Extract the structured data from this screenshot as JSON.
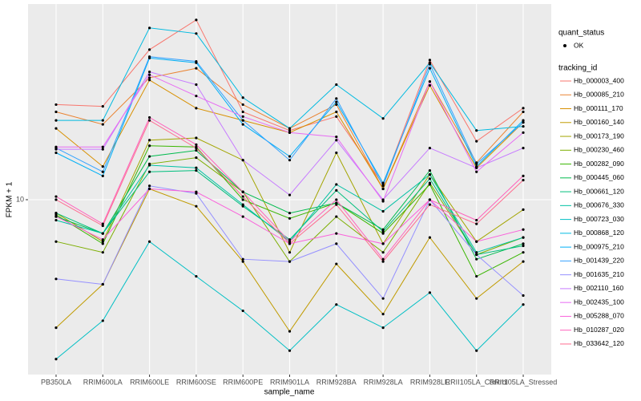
{
  "chart_data": {
    "type": "line",
    "x_label": "sample_name",
    "y_label": "FPKM + 1",
    "categories": [
      "PB350LA",
      "RRIM600LA",
      "RRIM600LE",
      "RRIM600SE",
      "RRIM600PE",
      "RRIM901LA",
      "RRIM928BA",
      "RRIM928LA",
      "RRIM928LE",
      "RRII105LA_Control",
      "RRII105LA_Stressed"
    ],
    "ylim": [
      3.36,
      33.9
    ],
    "yticks": [
      10
    ],
    "log_scale": true,
    "grid": true,
    "shape_legend": {
      "title": "quant_status",
      "labels": [
        "OK"
      ]
    },
    "legend_title": "tracking_id",
    "series": [
      {
        "name": "Hb_000003_400",
        "color": "#F8766D",
        "values": [
          18.1,
          17.9,
          25.5,
          30.7,
          17.3,
          15.4,
          16.8,
          11.0,
          23.9,
          14.4,
          17.7
        ]
      },
      {
        "name": "Hb_000085_210",
        "color": "#EA8331",
        "values": [
          17.3,
          16.0,
          21.4,
          22.7,
          18.1,
          15.6,
          18.1,
          10.7,
          20.9,
          12.6,
          17.3
        ]
      },
      {
        "name": "Hb_000111_170",
        "color": "#D89000",
        "values": [
          15.6,
          12.3,
          21.1,
          17.7,
          16.4,
          15.2,
          17.3,
          10.7,
          20.4,
          12.2,
          16.2
        ]
      },
      {
        "name": "Hb_000160_140",
        "color": "#C09B00",
        "values": [
          4.5,
          5.9,
          10.7,
          9.6,
          6.8,
          4.4,
          6.7,
          4.9,
          7.9,
          5.4,
          6.8
        ]
      },
      {
        "name": "Hb_000173_190",
        "color": "#A3A500",
        "values": [
          9.2,
          7.7,
          14.5,
          14.7,
          12.8,
          7.2,
          13.4,
          7.6,
          11.7,
          7.7,
          9.4
        ]
      },
      {
        "name": "Hb_000230_460",
        "color": "#7CAE00",
        "values": [
          7.7,
          7.2,
          12.5,
          13.0,
          10.5,
          6.8,
          9.0,
          7.2,
          11.1,
          7.1,
          7.9
        ]
      },
      {
        "name": "Hb_000282_090",
        "color": "#39B600",
        "values": [
          9.1,
          7.6,
          14.0,
          13.9,
          10.0,
          8.9,
          9.8,
          8.1,
          11.0,
          6.2,
          7.2
        ]
      },
      {
        "name": "Hb_000445_060",
        "color": "#00BB4E",
        "values": [
          9.0,
          8.1,
          13.1,
          13.6,
          10.5,
          9.2,
          9.8,
          8.3,
          12.0,
          6.9,
          7.6
        ]
      },
      {
        "name": "Hb_000661_120",
        "color": "#00BF7D",
        "values": [
          9.2,
          8.1,
          11.9,
          12.0,
          9.6,
          7.8,
          10.6,
          8.2,
          11.4,
          7.1,
          7.5
        ]
      },
      {
        "name": "Hb_000676_330",
        "color": "#00C1A3",
        "values": [
          8.8,
          8.1,
          12.4,
          12.2,
          9.7,
          7.7,
          11.0,
          9.3,
          11.7,
          7.2,
          7.9
        ]
      },
      {
        "name": "Hb_000723_030",
        "color": "#00BFC4",
        "values": [
          3.7,
          4.7,
          7.7,
          6.2,
          5.0,
          3.9,
          5.2,
          4.5,
          5.6,
          3.9,
          5.2
        ]
      },
      {
        "name": "Hb_000868_120",
        "color": "#00BAE0",
        "values": [
          16.4,
          16.4,
          29.2,
          28.2,
          18.9,
          15.6,
          20.5,
          16.6,
          23.5,
          15.4,
          15.8
        ]
      },
      {
        "name": "Hb_000975_210",
        "color": "#00B0F6",
        "values": [
          13.4,
          11.6,
          24.2,
          23.5,
          16.0,
          13.1,
          18.4,
          11.1,
          22.7,
          12.3,
          16.4
        ]
      },
      {
        "name": "Hb_001439_220",
        "color": "#35A2FF",
        "values": [
          13.8,
          11.9,
          24.4,
          23.7,
          16.4,
          12.8,
          18.8,
          10.9,
          23.3,
          12.5,
          16.2
        ]
      },
      {
        "name": "Hb_001635_210",
        "color": "#9590FF",
        "values": [
          6.1,
          5.9,
          10.9,
          10.4,
          6.9,
          6.8,
          7.6,
          5.4,
          10.0,
          7.1,
          5.5
        ]
      },
      {
        "name": "Hb_002110_160",
        "color": "#C77CFF",
        "values": [
          13.7,
          13.7,
          22.2,
          20.5,
          12.8,
          10.3,
          14.5,
          10.0,
          13.8,
          12.2,
          13.8
        ]
      },
      {
        "name": "Hb_002435_100",
        "color": "#E76BF3",
        "values": [
          13.9,
          13.9,
          21.8,
          19.1,
          16.8,
          15.2,
          14.8,
          9.9,
          20.9,
          11.9,
          15.2
        ]
      },
      {
        "name": "Hb_005288_070",
        "color": "#FA62DB",
        "values": [
          9.0,
          7.8,
          10.7,
          10.5,
          9.0,
          7.6,
          8.1,
          7.6,
          10.0,
          7.7,
          8.3
        ]
      },
      {
        "name": "Hb_010287_020",
        "color": "#FF62BC",
        "values": [
          10.2,
          8.6,
          16.7,
          14.1,
          10.5,
          7.7,
          10.0,
          6.9,
          10.0,
          8.8,
          11.6
        ]
      },
      {
        "name": "Hb_033642_120",
        "color": "#FF6C90",
        "values": [
          10.0,
          8.5,
          16.4,
          13.8,
          10.2,
          7.6,
          9.7,
          6.8,
          9.7,
          8.6,
          11.3
        ]
      }
    ]
  }
}
